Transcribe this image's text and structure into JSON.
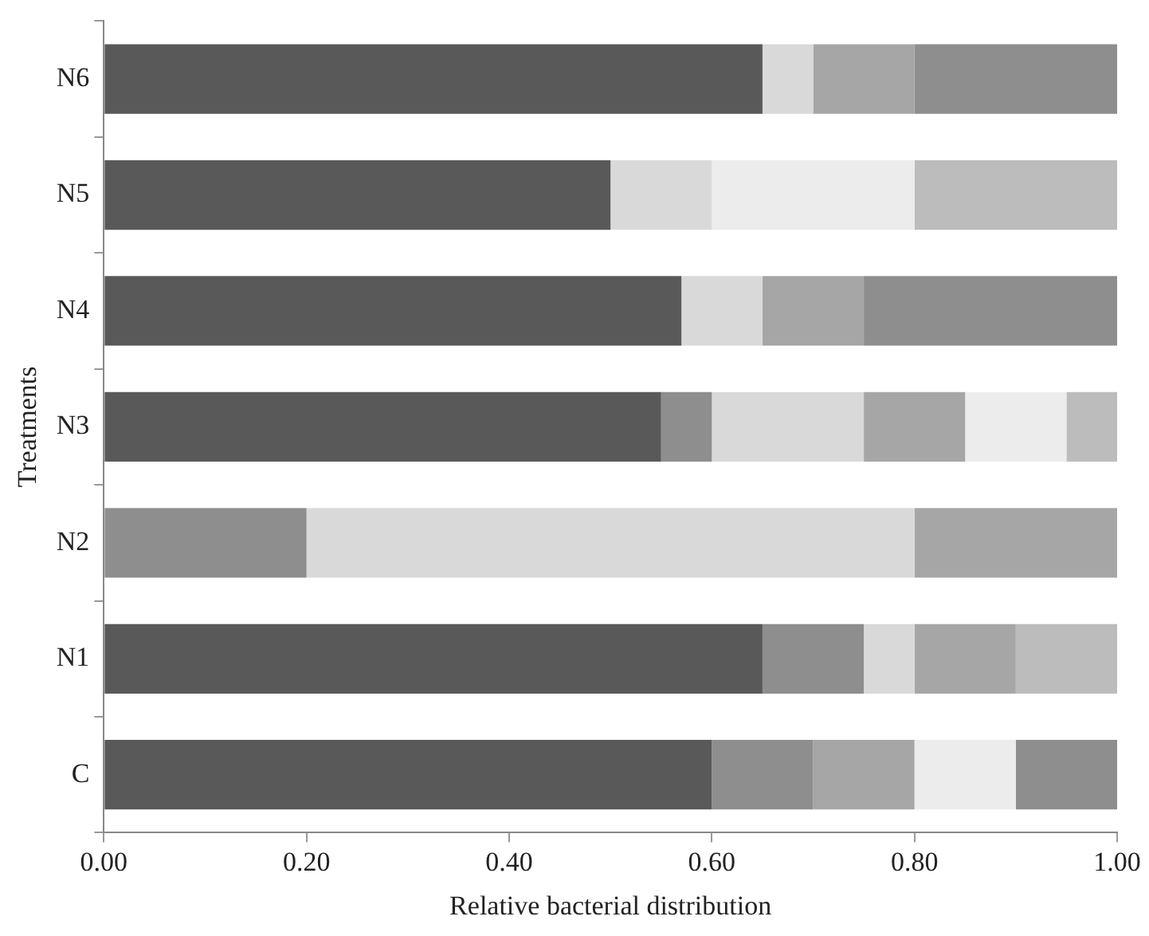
{
  "chart_data": {
    "type": "bar",
    "orientation": "horizontal",
    "stacked": true,
    "xlabel": "Relative bacterial distribution",
    "ylabel": "Treatments",
    "categories": [
      "N6",
      "N5",
      "N4",
      "N3",
      "N2",
      "N1",
      "C"
    ],
    "series": [
      {
        "colors": [
          "#595959",
          "#595959",
          "#595959",
          "#595959",
          "#8e8e8e",
          "#595959",
          "#595959"
        ],
        "values": [
          0.65,
          0.5,
          0.57,
          0.55,
          0.2,
          0.65,
          0.6
        ]
      },
      {
        "colors": [
          "#d9d9d9",
          "#d9d9d9",
          "#d9d9d9",
          "#8e8e8e",
          "#d9d9d9",
          "#8e8e8e",
          "#8e8e8e"
        ],
        "values": [
          0.05,
          0.1,
          0.08,
          0.05,
          0.6,
          0.1,
          0.1
        ]
      },
      {
        "colors": [
          "#a6a6a6",
          "#ececec",
          "#a6a6a6",
          "#d9d9d9",
          "#a6a6a6",
          "#d9d9d9",
          "#a6a6a6"
        ],
        "values": [
          0.1,
          0.2,
          0.1,
          0.15,
          0.2,
          0.05,
          0.1
        ]
      },
      {
        "colors": [
          "#8e8e8e",
          "#bcbcbc",
          "#8e8e8e",
          "#a6a6a6",
          null,
          "#a6a6a6",
          "#ececec"
        ],
        "values": [
          0.2,
          0.2,
          0.25,
          0.1,
          null,
          0.1,
          0.1
        ]
      },
      {
        "colors": [
          null,
          null,
          null,
          "#ececec",
          null,
          "#bcbcbc",
          "#8e8e8e"
        ],
        "values": [
          null,
          null,
          null,
          0.1,
          null,
          0.1,
          0.1
        ]
      },
      {
        "colors": [
          null,
          null,
          null,
          "#bcbcbc",
          null,
          null,
          null
        ],
        "values": [
          null,
          null,
          null,
          0.05,
          null,
          null,
          null
        ]
      }
    ],
    "xlim": [
      0,
      1
    ],
    "xticks": [
      {
        "value": 0,
        "label": "0.00"
      },
      {
        "value": 0.2,
        "label": "0.20"
      },
      {
        "value": 0.4,
        "label": "0.40"
      },
      {
        "value": 0.6,
        "label": "0.60"
      },
      {
        "value": 0.8,
        "label": "0.80"
      },
      {
        "value": 1,
        "label": "1.00"
      }
    ],
    "grid": false,
    "legend": false
  }
}
